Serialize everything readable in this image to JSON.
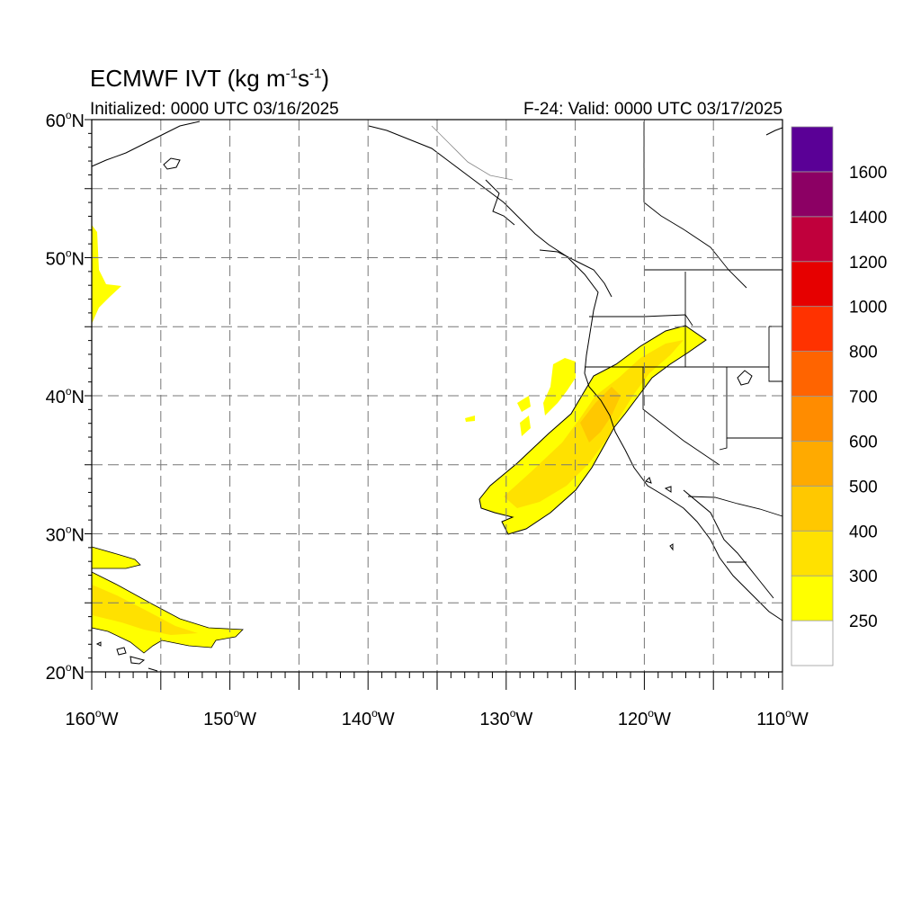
{
  "header": {
    "title_main": "ECMWF IVT (kg m",
    "title_exp1": "-1",
    "title_mid": "s",
    "title_exp2": "-1",
    "title_end": ")",
    "initialized": "Initialized: 0000 UTC 03/16/2025",
    "valid": "F-24: Valid: 0000 UTC 03/17/2025"
  },
  "axes": {
    "lat_labels": [
      {
        "deg": "60",
        "hemi": "N",
        "lat": 60
      },
      {
        "deg": "50",
        "hemi": "N",
        "lat": 50
      },
      {
        "deg": "40",
        "hemi": "N",
        "lat": 40
      },
      {
        "deg": "30",
        "hemi": "N",
        "lat": 30
      },
      {
        "deg": "20",
        "hemi": "N",
        "lat": 20
      }
    ],
    "lon_labels": [
      {
        "deg": "160",
        "hemi": "W",
        "lon": -160
      },
      {
        "deg": "150",
        "hemi": "W",
        "lon": -150
      },
      {
        "deg": "140",
        "hemi": "W",
        "lon": -140
      },
      {
        "deg": "130",
        "hemi": "W",
        "lon": -130
      },
      {
        "deg": "120",
        "hemi": "W",
        "lon": -120
      },
      {
        "deg": "110",
        "hemi": "W",
        "lon": -110
      }
    ]
  },
  "colorbar": {
    "labels": [
      "250",
      "300",
      "400",
      "500",
      "600",
      "700",
      "800",
      "1000",
      "1200",
      "1400",
      "1600"
    ],
    "colors": [
      "#ffffff",
      "#ffff00",
      "#ffe100",
      "#ffc800",
      "#ffaa00",
      "#ff8c00",
      "#ff6400",
      "#ff3200",
      "#e60000",
      "#c0003c",
      "#8c0064",
      "#5a0096"
    ]
  },
  "map": {
    "lat_range": [
      20,
      60
    ],
    "lon_range": [
      -160,
      -110
    ],
    "grid": true
  }
}
